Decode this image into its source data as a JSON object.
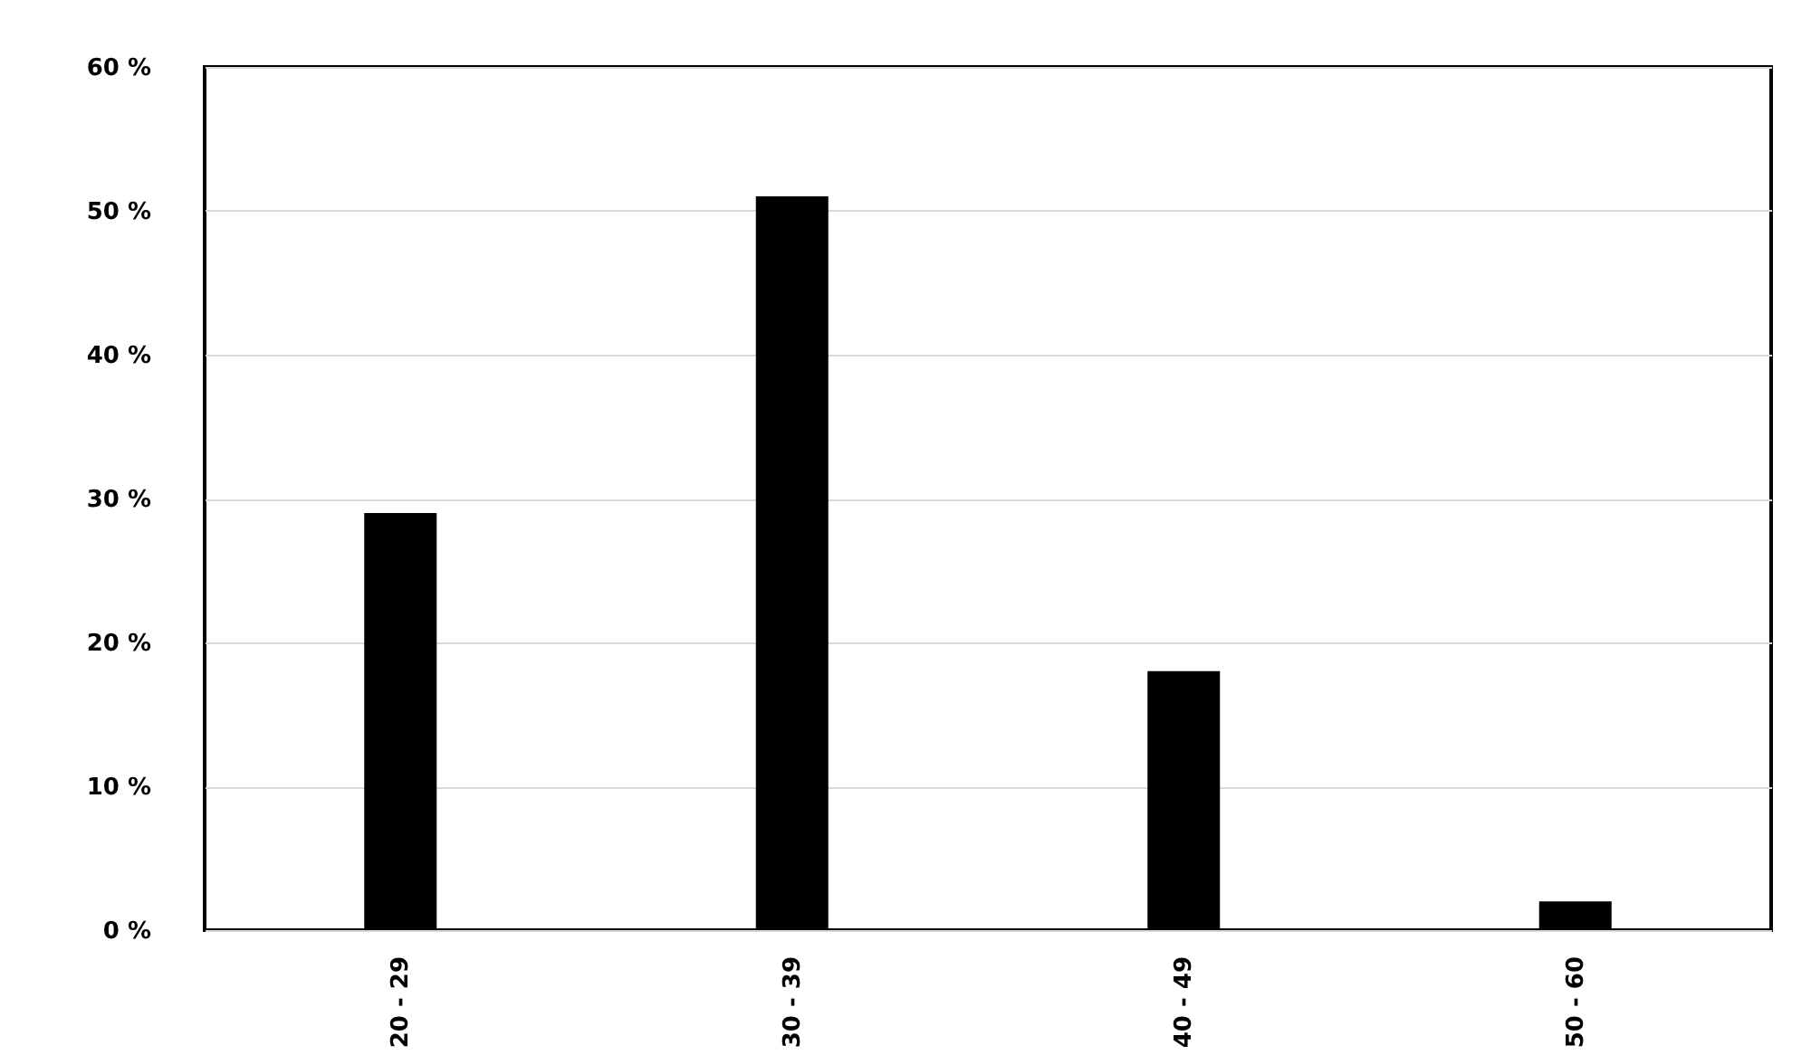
{
  "chart_data": {
    "type": "bar",
    "categories": [
      "20 - 29",
      "30 - 39",
      "40 - 49",
      "50 - 60"
    ],
    "values": [
      29,
      51,
      18,
      2
    ],
    "color": "#000000",
    "ylim": [
      0,
      60
    ],
    "yticks": [
      {
        "value": 0,
        "label": "0 %"
      },
      {
        "value": 10,
        "label": "10 %"
      },
      {
        "value": 20,
        "label": "20 %"
      },
      {
        "value": 30,
        "label": "30 %"
      },
      {
        "value": 40,
        "label": "40 %"
      },
      {
        "value": 50,
        "label": "50 %"
      },
      {
        "value": 60,
        "label": "60 %"
      }
    ],
    "grid": "y"
  }
}
